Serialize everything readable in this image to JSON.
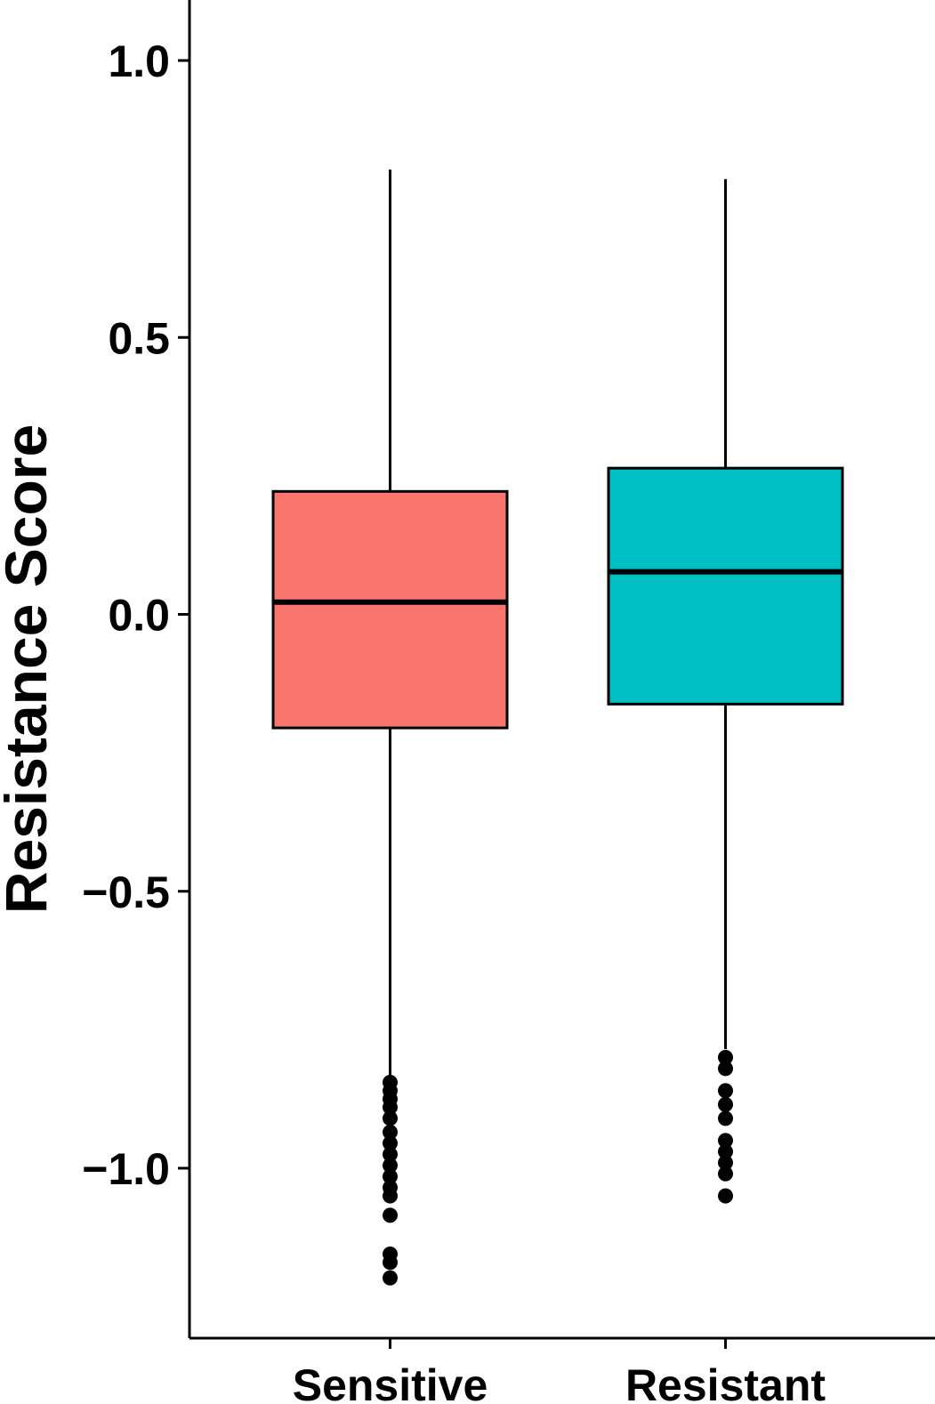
{
  "chart_data": {
    "type": "boxplot",
    "title": "",
    "xlabel": "",
    "ylabel": "Resistance Score",
    "ylim": [
      -1.3,
      1.1
    ],
    "yticks": [
      -1.0,
      -0.5,
      0.0,
      0.5,
      1.0
    ],
    "ytick_labels": [
      "−1.0",
      "−0.5",
      "0.0",
      "0.5",
      "1.0"
    ],
    "categories": [
      "Sensitive",
      "Resistant"
    ],
    "grid": false,
    "legend": "none",
    "series": [
      {
        "category": "Sensitive",
        "color": "#F8766D",
        "whisker_low": -0.84,
        "q1": -0.205,
        "median": 0.022,
        "q3": 0.222,
        "whisker_high": 0.803,
        "outliers": [
          -0.845,
          -0.86,
          -0.875,
          -0.89,
          -0.91,
          -0.935,
          -0.955,
          -0.975,
          -0.995,
          -1.015,
          -1.035,
          -1.05,
          -1.085,
          -1.155,
          -1.17,
          -1.198
        ]
      },
      {
        "category": "Resistant",
        "color": "#00BFC4",
        "whisker_low": -0.785,
        "q1": -0.162,
        "median": 0.077,
        "q3": 0.264,
        "whisker_high": 0.786,
        "outliers": [
          -0.8,
          -0.82,
          -0.86,
          -0.885,
          -0.91,
          -0.95,
          -0.97,
          -0.99,
          -1.01,
          -1.05
        ]
      }
    ]
  }
}
